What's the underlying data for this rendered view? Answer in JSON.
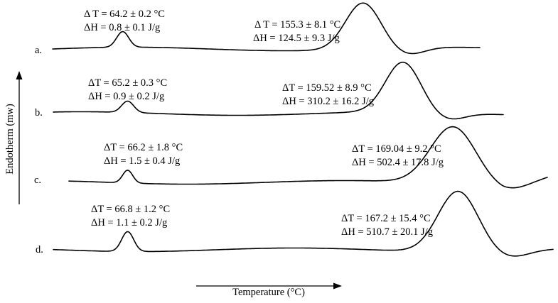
{
  "chart_data": {
    "type": "line",
    "title": "",
    "xlabel": "Temperature (°C)",
    "ylabel": "Endotherm (mw)",
    "grid": false,
    "legend": "none",
    "series": [
      {
        "name": "a.",
        "label": "a.",
        "baseline": 0,
        "peaks": [
          {
            "position": 0.14,
            "width": 0.012,
            "height": 22
          },
          {
            "position": 0.62,
            "width": 0.035,
            "height": 65
          }
        ],
        "annotations": [
          {
            "dT": "Δ T = 64.2 ± 0.2 °C",
            "dH": "ΔH = 0.8 ± 0.1 J/g"
          },
          {
            "dT": "Δ T = 155.3 ± 8.1 °C",
            "dH": "ΔH = 124.5 ± 9.3 J/g"
          }
        ]
      },
      {
        "name": "b.",
        "label": "b.",
        "baseline": 0,
        "peaks": [
          {
            "position": 0.15,
            "width": 0.012,
            "height": 16
          },
          {
            "position": 0.7,
            "width": 0.035,
            "height": 70
          }
        ],
        "annotations": [
          {
            "dT": "ΔT = 65.2 ± 0.3 °C",
            "dH": "ΔH = 0.9 ± 0.2 J/g"
          },
          {
            "dT": "ΔT = 159.52 ± 8.9 °C",
            "dH": "ΔH = 310.2 ± 16.2 J/g"
          }
        ]
      },
      {
        "name": "c.",
        "label": "c.",
        "baseline": 0,
        "peaks": [
          {
            "position": 0.15,
            "width": 0.01,
            "height": 18
          },
          {
            "position": 0.8,
            "width": 0.045,
            "height": 80
          }
        ],
        "annotations": [
          {
            "dT": "ΔT = 66.2 ± 1.8 °C",
            "dH": "ΔH = 1.5 ± 0.4 J/g"
          },
          {
            "dT": "ΔT = 169.04 ± 9.2 °C",
            "dH": "ΔH = 502.4 ± 17.8 J/g"
          }
        ]
      },
      {
        "name": "d.",
        "label": "d.",
        "baseline": 0,
        "peaks": [
          {
            "position": 0.15,
            "width": 0.012,
            "height": 28
          },
          {
            "position": 0.81,
            "width": 0.04,
            "height": 85
          }
        ],
        "annotations": [
          {
            "dT": "ΔT = 66.8 ± 1.2 °C",
            "dH": "ΔH = 1.1 ± 0.2 J/g"
          },
          {
            "dT": "ΔT = 167.2 ± 15.4 °C",
            "dH": "ΔH = 510.7 ± 20.1 J/g"
          }
        ]
      }
    ]
  }
}
